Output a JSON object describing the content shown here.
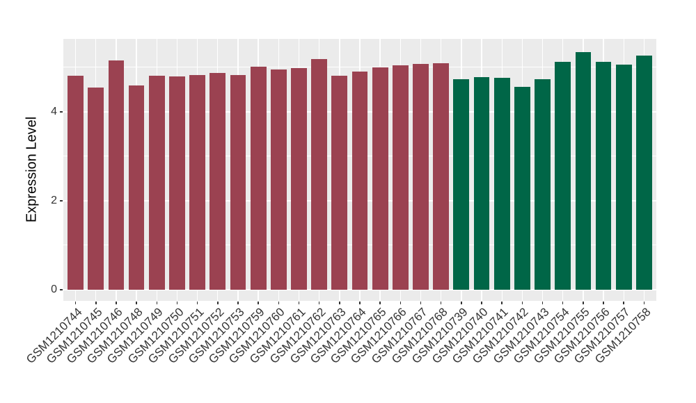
{
  "figure": {
    "background": "#FFFFFF",
    "panel_background": "#EBEBEB",
    "gridline_color": "#FFFFFF",
    "axis_text_color": "#333333",
    "axis_title_color": "#000000",
    "legend": "none",
    "title": ""
  },
  "chart_data": {
    "type": "bar",
    "title": "",
    "xlabel": "",
    "ylabel": "Expression Level",
    "categories": [
      "GSM1210744",
      "GSM1210745",
      "GSM1210746",
      "GSM1210748",
      "GSM1210749",
      "GSM1210750",
      "GSM1210751",
      "GSM1210752",
      "GSM1210753",
      "GSM1210759",
      "GSM1210760",
      "GSM1210761",
      "GSM1210762",
      "GSM1210763",
      "GSM1210764",
      "GSM1210765",
      "GSM1210766",
      "GSM1210767",
      "GSM1210768",
      "GSM1210739",
      "GSM1210740",
      "GSM1210741",
      "GSM1210742",
      "GSM1210743",
      "GSM1210754",
      "GSM1210755",
      "GSM1210756",
      "GSM1210757",
      "GSM1210758"
    ],
    "values": [
      4.81,
      4.54,
      5.16,
      4.6,
      4.81,
      4.79,
      4.83,
      4.87,
      4.83,
      5.02,
      4.95,
      4.99,
      5.19,
      4.82,
      4.9,
      5.0,
      5.05,
      5.08,
      5.1,
      4.74,
      4.78,
      4.77,
      4.56,
      4.73,
      5.12,
      5.34,
      5.13,
      5.07,
      5.27
    ],
    "groups": [
      "red",
      "red",
      "red",
      "red",
      "red",
      "red",
      "red",
      "red",
      "red",
      "red",
      "red",
      "red",
      "red",
      "red",
      "red",
      "red",
      "red",
      "red",
      "red",
      "green",
      "green",
      "green",
      "green",
      "green",
      "green",
      "green",
      "green",
      "green",
      "green"
    ],
    "group_colors": {
      "red": "#9B4251",
      "green": "#006647"
    },
    "yticks": [
      0,
      2,
      4
    ],
    "yticks_minor": [
      1,
      3,
      5
    ],
    "ylim": [
      -0.25,
      5.64
    ],
    "grid": "major+minor horizontal, major vertical per category, white on gray",
    "legend_position": "none"
  }
}
